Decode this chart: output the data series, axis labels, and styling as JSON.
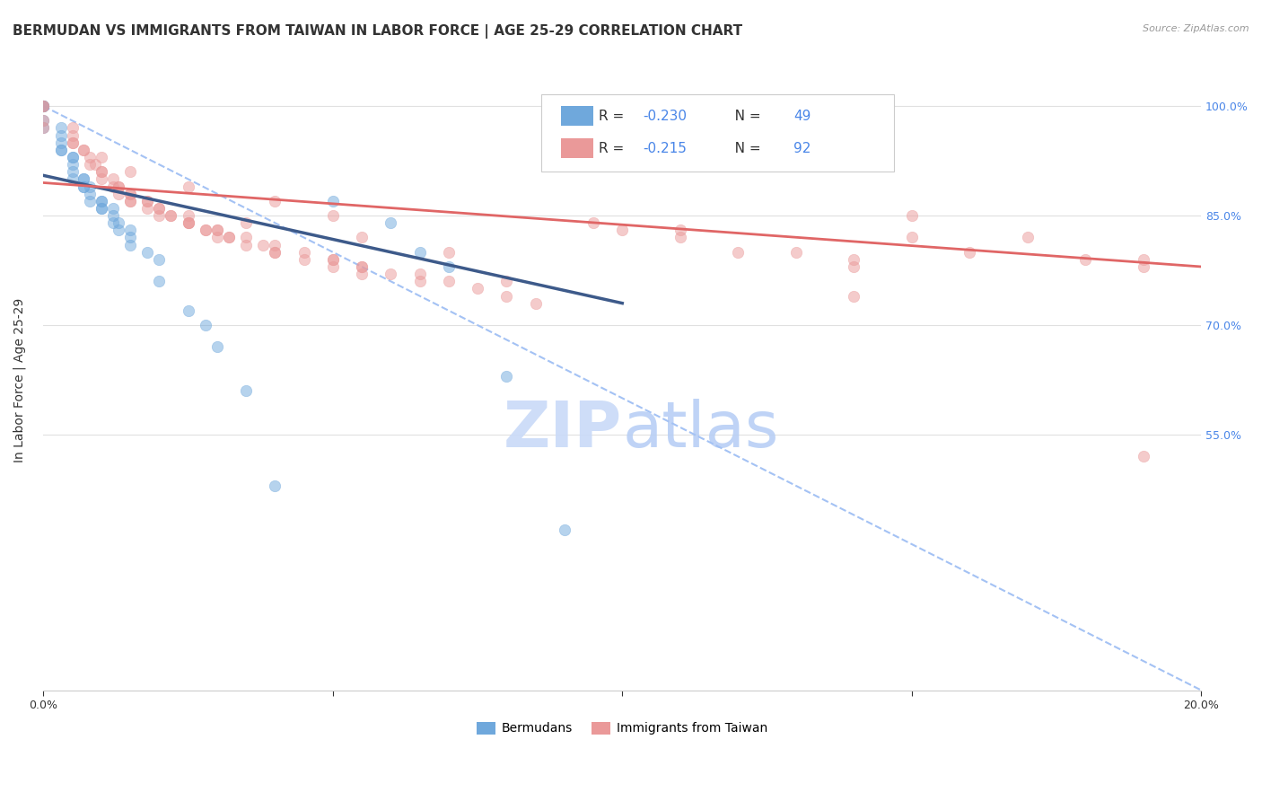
{
  "title": "BERMUDAN VS IMMIGRANTS FROM TAIWAN IN LABOR FORCE | AGE 25-29 CORRELATION CHART",
  "source": "Source: ZipAtlas.com",
  "ylabel": "In Labor Force | Age 25-29",
  "xlim": [
    0.0,
    0.2
  ],
  "ylim": [
    0.2,
    1.05
  ],
  "ytick_positions": [
    1.0,
    0.85,
    0.7,
    0.55
  ],
  "ytick_labels": [
    "100.0%",
    "85.0%",
    "70.0%",
    "55.0%"
  ],
  "xtick_positions": [
    0.0,
    0.05,
    0.1,
    0.15,
    0.2
  ],
  "xtick_labels": [
    "0.0%",
    "",
    "",
    "",
    "20.0%"
  ],
  "blue_color": "#6fa8dc",
  "pink_color": "#ea9999",
  "blue_line_color": "#3d5a8a",
  "pink_line_color": "#e06666",
  "dashed_line_color": "#a4c2f4",
  "right_tick_color": "#4a86e8",
  "grid_color": "#e0e0e0",
  "watermark_color": "#c9daf8",
  "blue_scatter_x": [
    0.0,
    0.0,
    0.0,
    0.0,
    0.0,
    0.0,
    0.003,
    0.003,
    0.003,
    0.003,
    0.003,
    0.005,
    0.005,
    0.005,
    0.005,
    0.005,
    0.007,
    0.007,
    0.007,
    0.007,
    0.008,
    0.008,
    0.008,
    0.01,
    0.01,
    0.01,
    0.01,
    0.012,
    0.012,
    0.012,
    0.013,
    0.013,
    0.015,
    0.015,
    0.015,
    0.018,
    0.02,
    0.02,
    0.025,
    0.028,
    0.03,
    0.035,
    0.04,
    0.05,
    0.06,
    0.065,
    0.07,
    0.08,
    0.09
  ],
  "blue_scatter_y": [
    1.0,
    1.0,
    1.0,
    1.0,
    0.98,
    0.97,
    0.97,
    0.96,
    0.95,
    0.94,
    0.94,
    0.93,
    0.93,
    0.92,
    0.91,
    0.9,
    0.9,
    0.9,
    0.89,
    0.89,
    0.89,
    0.88,
    0.87,
    0.87,
    0.87,
    0.86,
    0.86,
    0.86,
    0.85,
    0.84,
    0.84,
    0.83,
    0.83,
    0.82,
    0.81,
    0.8,
    0.79,
    0.76,
    0.72,
    0.7,
    0.67,
    0.61,
    0.48,
    0.87,
    0.84,
    0.8,
    0.78,
    0.63,
    0.42
  ],
  "pink_scatter_x": [
    0.0,
    0.0,
    0.0,
    0.0,
    0.005,
    0.005,
    0.005,
    0.007,
    0.007,
    0.008,
    0.008,
    0.009,
    0.01,
    0.01,
    0.01,
    0.012,
    0.012,
    0.013,
    0.013,
    0.013,
    0.015,
    0.015,
    0.015,
    0.015,
    0.018,
    0.018,
    0.018,
    0.02,
    0.02,
    0.02,
    0.022,
    0.022,
    0.025,
    0.025,
    0.025,
    0.025,
    0.028,
    0.028,
    0.03,
    0.03,
    0.03,
    0.032,
    0.032,
    0.035,
    0.035,
    0.038,
    0.04,
    0.04,
    0.04,
    0.045,
    0.045,
    0.05,
    0.05,
    0.05,
    0.055,
    0.055,
    0.06,
    0.065,
    0.065,
    0.07,
    0.075,
    0.08,
    0.085,
    0.09,
    0.095,
    0.1,
    0.11,
    0.11,
    0.12,
    0.13,
    0.14,
    0.14,
    0.15,
    0.15,
    0.16,
    0.17,
    0.18,
    0.19,
    0.19,
    0.005,
    0.01,
    0.015,
    0.025,
    0.04,
    0.05,
    0.035,
    0.055,
    0.07,
    0.055,
    0.08,
    0.14,
    0.19
  ],
  "pink_scatter_y": [
    1.0,
    1.0,
    0.98,
    0.97,
    0.97,
    0.96,
    0.95,
    0.94,
    0.94,
    0.93,
    0.92,
    0.92,
    0.91,
    0.91,
    0.9,
    0.9,
    0.89,
    0.89,
    0.89,
    0.88,
    0.88,
    0.88,
    0.87,
    0.87,
    0.87,
    0.87,
    0.86,
    0.86,
    0.86,
    0.85,
    0.85,
    0.85,
    0.85,
    0.84,
    0.84,
    0.84,
    0.83,
    0.83,
    0.83,
    0.83,
    0.82,
    0.82,
    0.82,
    0.82,
    0.81,
    0.81,
    0.81,
    0.8,
    0.8,
    0.8,
    0.79,
    0.79,
    0.79,
    0.78,
    0.78,
    0.77,
    0.77,
    0.77,
    0.76,
    0.76,
    0.75,
    0.74,
    0.73,
    0.92,
    0.84,
    0.83,
    0.83,
    0.82,
    0.8,
    0.8,
    0.78,
    0.79,
    0.85,
    0.82,
    0.8,
    0.82,
    0.79,
    0.79,
    0.78,
    0.95,
    0.93,
    0.91,
    0.89,
    0.87,
    0.85,
    0.84,
    0.82,
    0.8,
    0.78,
    0.76,
    0.74,
    0.52
  ],
  "blue_trend_x": [
    0.0,
    0.1
  ],
  "blue_trend_y": [
    0.905,
    0.73
  ],
  "pink_trend_x": [
    0.0,
    0.2
  ],
  "pink_trend_y": [
    0.895,
    0.78
  ],
  "dashed_trend_x": [
    0.0,
    0.2
  ],
  "dashed_trend_y": [
    1.0,
    0.2
  ],
  "legend_R_blue": "-0.230",
  "legend_N_blue": "49",
  "legend_R_pink": "-0.215",
  "legend_N_pink": "92",
  "scatter_size": 80,
  "scatter_alpha": 0.5
}
